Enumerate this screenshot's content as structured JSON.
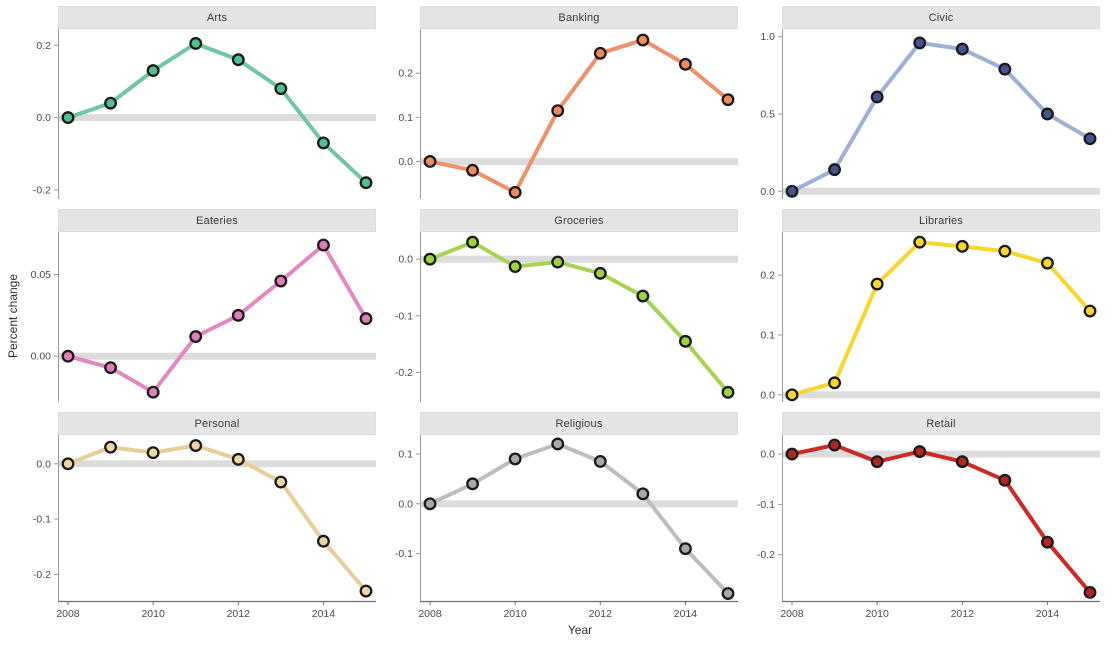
{
  "figure": {
    "ylabel": "Percent change",
    "xlabel": "Year"
  },
  "style": {
    "zero_band_color": "#dcdcdc",
    "marker_stroke": "#1a1a1a",
    "axis_color": "#9a9a9a",
    "bottom_axis_color": "#6e6e6e",
    "strip_bg": "#e4e4e4",
    "tick_text_color": "#4a4a4a"
  },
  "chart_data": {
    "type": "line",
    "xlabel": "Year",
    "ylabel": "Percent change",
    "x": [
      2008,
      2009,
      2010,
      2011,
      2012,
      2013,
      2014,
      2015
    ],
    "xticks": [
      2008,
      2010,
      2012,
      2014
    ],
    "xtick_labels": [
      "2008",
      "2010",
      "2012",
      "2014"
    ],
    "xlim": [
      2008,
      2015
    ],
    "grid": false,
    "legend": "none",
    "facets": [
      {
        "name": "Arts",
        "values": [
          0.0,
          0.04,
          0.13,
          0.205,
          0.16,
          0.08,
          -0.07,
          -0.18
        ],
        "line_color": "#6ec6a2",
        "marker_color": "#4ec28c",
        "yticks": [
          0.2,
          0.0,
          -0.2
        ],
        "ytick_labels": [
          "0.2",
          "0.0",
          "-0.2"
        ],
        "ylim": [
          -0.225,
          0.245
        ]
      },
      {
        "name": "Banking",
        "values": [
          0.0,
          -0.02,
          -0.07,
          0.115,
          0.245,
          0.275,
          0.22,
          0.14
        ],
        "line_color": "#f0906a",
        "marker_color": "#ef8a5c",
        "yticks": [
          0.2,
          0.1,
          0.0
        ],
        "ytick_labels": [
          "0.2",
          "0.1",
          "0.0"
        ],
        "ylim": [
          -0.085,
          0.3
        ]
      },
      {
        "name": "Civic",
        "values": [
          0.0,
          0.14,
          0.61,
          0.96,
          0.92,
          0.79,
          0.5,
          0.34
        ],
        "line_color": "#9fafd6",
        "marker_color": "#46548c",
        "yticks": [
          1.0,
          0.5,
          0.0
        ],
        "ytick_labels": [
          "1.0",
          "0.5",
          "0.0"
        ],
        "ylim": [
          -0.05,
          1.05
        ]
      },
      {
        "name": "Eateries",
        "values": [
          0.0,
          -0.007,
          -0.022,
          0.012,
          0.025,
          0.046,
          0.068,
          0.023
        ],
        "line_color": "#e289c2",
        "marker_color": "#de7eb8",
        "yticks": [
          0.05,
          0.0
        ],
        "ytick_labels": [
          "0.05",
          "0.00"
        ],
        "ylim": [
          -0.028,
          0.076
        ]
      },
      {
        "name": "Groceries",
        "values": [
          0.0,
          0.03,
          -0.013,
          -0.005,
          -0.025,
          -0.065,
          -0.145,
          -0.235
        ],
        "line_color": "#a7d351",
        "marker_color": "#9fd13f",
        "yticks": [
          0.0,
          -0.1,
          -0.2
        ],
        "ytick_labels": [
          "0.0",
          "-0.1",
          "-0.2"
        ],
        "ylim": [
          -0.252,
          0.048
        ]
      },
      {
        "name": "Libraries",
        "values": [
          0.0,
          0.02,
          0.185,
          0.255,
          0.248,
          0.24,
          0.22,
          0.14
        ],
        "line_color": "#f8d62b",
        "marker_color": "#f8d62b",
        "yticks": [
          0.2,
          0.1,
          0.0
        ],
        "ytick_labels": [
          "0.2",
          "0.1",
          "0.0"
        ],
        "ylim": [
          -0.012,
          0.272
        ]
      },
      {
        "name": "Personal",
        "values": [
          0.0,
          0.03,
          0.02,
          0.033,
          0.008,
          -0.033,
          -0.14,
          -0.23
        ],
        "line_color": "#e8cd96",
        "marker_color": "#eed7a4",
        "yticks": [
          0.0,
          -0.1,
          -0.2
        ],
        "ytick_labels": [
          "0.0",
          "-0.1",
          "-0.2"
        ],
        "ylim": [
          -0.248,
          0.052
        ]
      },
      {
        "name": "Religious",
        "values": [
          0.0,
          0.04,
          0.09,
          0.12,
          0.085,
          0.02,
          -0.09,
          -0.18
        ],
        "line_color": "#bdbdbd",
        "marker_color": "#a8a8a8",
        "yticks": [
          0.1,
          0.0,
          -0.1
        ],
        "ytick_labels": [
          "0.1",
          "0.0",
          "-0.1"
        ],
        "ylim": [
          -0.195,
          0.138
        ]
      },
      {
        "name": "Retail",
        "values": [
          0.0,
          0.018,
          -0.015,
          0.005,
          -0.015,
          -0.052,
          -0.175,
          -0.275
        ],
        "line_color": "#cd2a25",
        "marker_color": "#b22622",
        "yticks": [
          0.0,
          -0.1,
          -0.2
        ],
        "ytick_labels": [
          "0.0",
          "-0.1",
          "-0.2"
        ],
        "ylim": [
          -0.292,
          0.038
        ]
      }
    ]
  }
}
